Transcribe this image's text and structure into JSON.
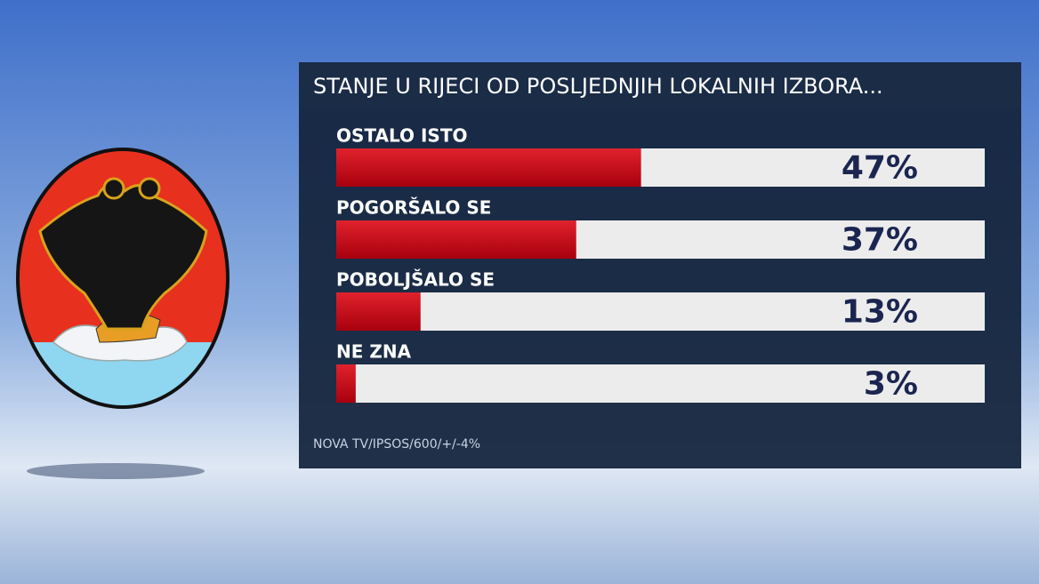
{
  "chart_data": {
    "type": "bar",
    "orientation": "horizontal",
    "title": "STANJE U RIJECI OD POSLJEDNJIH LOKALNIH IZBORA...",
    "categories": [
      "OSTALO ISTO",
      "POGORŠALO SE",
      "POBOLJŠALO SE",
      "NE ZNA"
    ],
    "values": [
      47,
      37,
      13,
      3
    ],
    "value_labels": [
      "47%",
      "37%",
      "13%",
      "3%"
    ],
    "color": "#c0101c",
    "xlim": [
      0,
      100
    ],
    "source": "NOVA TV/IPSOS/600/+/-4%"
  }
}
